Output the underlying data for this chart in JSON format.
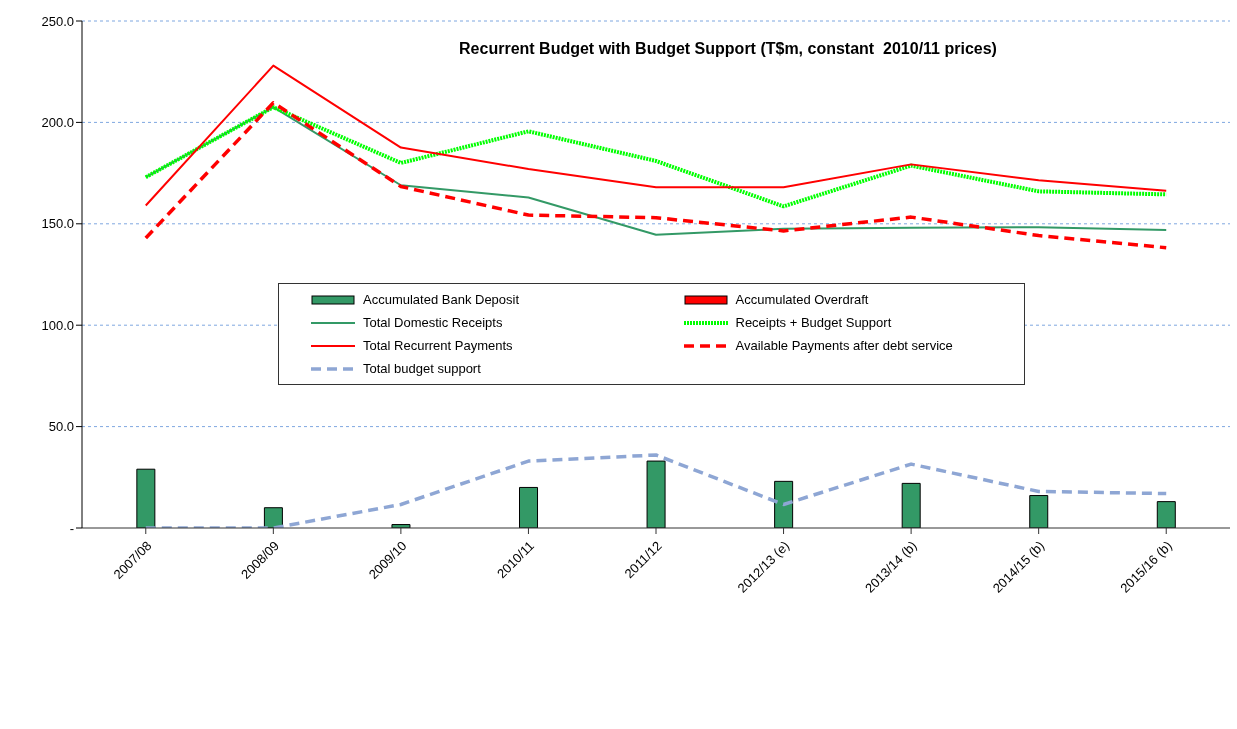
{
  "chart_data": {
    "type": "bar",
    "title": "Recurrent Budget with Budget Support (T$m, constant  2010/11 prices)",
    "categories": [
      "2007/08",
      "2008/09",
      "2009/10",
      "2010/11",
      "2011/12",
      "2012/13 (e)",
      "2013/14 (b)",
      "2014/15 (b)",
      "2015/16 (b)"
    ],
    "series": [
      {
        "name": "Accumulated Bank Deposit",
        "type": "bar",
        "color": "#339966",
        "values": [
          29,
          10,
          1.7,
          20,
          33,
          23,
          22,
          16,
          13
        ]
      },
      {
        "name": "Accumulated Overdraft",
        "color": "#ff0000",
        "values": [
          0,
          0,
          0,
          0,
          0,
          0,
          0,
          0,
          0
        ]
      },
      {
        "name": "Total Domestic Receipts",
        "type": "line",
        "color": "#339966",
        "line_style": "solid",
        "values": [
          173,
          207.5,
          169,
          163,
          144.6,
          147.5,
          148,
          148.3,
          147
        ]
      },
      {
        "name": "Receipts + Budget Support",
        "type": "line",
        "color": "#00ff00",
        "line_style": "dotted",
        "values": [
          173,
          207.5,
          180,
          195.6,
          181,
          158.6,
          178.7,
          166,
          164.5
        ]
      },
      {
        "name": "Total Recurrent Payments",
        "type": "line",
        "color": "#ff0000",
        "line_style": "solid",
        "values": [
          159,
          228,
          187.6,
          177,
          168,
          168,
          179.3,
          171.5,
          166.3
        ]
      },
      {
        "name": "Available Payments after debt service",
        "type": "line",
        "color": "#ff0000",
        "line_style": "dashed",
        "values": [
          143,
          209.7,
          168.4,
          154.3,
          153,
          146.5,
          153.3,
          144.2,
          138.2
        ]
      },
      {
        "name": "Total budget support",
        "type": "line",
        "color": "#8ea6d4",
        "line_style": "dashed",
        "values": [
          0,
          0,
          11.6,
          33,
          36,
          11.6,
          31.5,
          18,
          17
        ]
      }
    ],
    "ylim": [
      0,
      250
    ],
    "yticks": [
      {
        "value": 0,
        "label": "-"
      },
      {
        "value": 50,
        "label": "50.0"
      },
      {
        "value": 100,
        "label": "100.0"
      },
      {
        "value": 150,
        "label": "150.0"
      },
      {
        "value": 200,
        "label": "200.0"
      },
      {
        "value": 250,
        "label": "250.0"
      }
    ],
    "grid": "y",
    "legend": "center",
    "marker": "none"
  }
}
